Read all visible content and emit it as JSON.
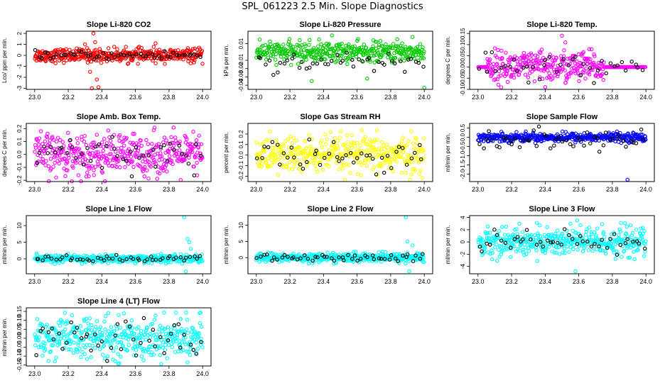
{
  "figure_title": "SPL_061223  2.5 Min. Slope Diagnostics",
  "colors": {
    "red": "#ff0000",
    "green": "#00cc00",
    "magenta": "#ff00ff",
    "yellow": "#ffff00",
    "blue": "#0000ff",
    "cyan": "#00ffff",
    "black": "#000000"
  },
  "chart_data": [
    {
      "type": "scatter",
      "title": "Slope Li-820 CO2",
      "ylabel": "Lco/ ppm per min.",
      "xlim": [
        22.95,
        24.05
      ],
      "ylim": [
        -3.1,
        2.2
      ],
      "xticks": [
        "23.0",
        "23.2",
        "23.4",
        "23.6",
        "23.8",
        "24.0"
      ],
      "xtick_values": [
        23.0,
        23.2,
        23.4,
        23.6,
        23.8,
        24.0
      ],
      "yticks": [
        "-3",
        "-2",
        "-1",
        "0",
        "1",
        "2"
      ],
      "ytick_values": [
        -3,
        -2,
        -1,
        0,
        1,
        2
      ],
      "series": [
        {
          "name": "main",
          "color": "red",
          "center": 0,
          "spread": 0.3,
          "count": 420,
          "x_range": [
            23.0,
            24.0
          ],
          "points": [
            {
              "x": 23.35,
              "y": 2.0
            },
            {
              "x": 23.36,
              "y": 1.2
            },
            {
              "x": 23.33,
              "y": -1.5
            },
            {
              "x": 23.37,
              "y": -2.2
            },
            {
              "x": 23.34,
              "y": -3.0
            },
            {
              "x": 23.38,
              "y": -2.9
            },
            {
              "x": 23.3,
              "y": 1.0
            },
            {
              "x": 23.72,
              "y": 1.1
            }
          ]
        },
        {
          "name": "black",
          "color": "black",
          "center": 0,
          "spread": 0.2,
          "count": 55,
          "x_range": [
            23.0,
            24.0
          ]
        }
      ]
    },
    {
      "type": "scatter",
      "title": "Slope Li-820 Pressure",
      "ylabel": "kPa per min.",
      "xlim": [
        22.95,
        24.05
      ],
      "ylim": [
        -0.045,
        0.025
      ],
      "xticks": [
        "23.0",
        "23.2",
        "23.4",
        "23.6",
        "23.8",
        "24.0"
      ],
      "xtick_values": [
        23.0,
        23.2,
        23.4,
        23.6,
        23.8,
        24.0
      ],
      "yticks": [
        "-0.04",
        "-0.03",
        "-0.02",
        "-0.01",
        "0.01"
      ],
      "ytick_values": [
        -0.04,
        -0.03,
        -0.02,
        -0.01,
        0.01
      ],
      "series": [
        {
          "name": "main",
          "color": "green",
          "center": 0.0,
          "spread": 0.006,
          "count": 400,
          "x_range": [
            23.0,
            24.0
          ],
          "points": [
            {
              "x": 23.45,
              "y": 0.02
            },
            {
              "x": 23.93,
              "y": 0.018
            },
            {
              "x": 23.33,
              "y": -0.035
            },
            {
              "x": 23.66,
              "y": -0.032
            },
            {
              "x": 24.0,
              "y": -0.043
            },
            {
              "x": 23.02,
              "y": 0.015
            }
          ]
        },
        {
          "name": "black",
          "color": "black",
          "center": -0.012,
          "spread": 0.006,
          "count": 45,
          "x_range": [
            23.0,
            24.0
          ]
        }
      ]
    },
    {
      "type": "scatter",
      "title": "Slope Li-820 Temp.",
      "ylabel": "degrees C per min.",
      "xlim": [
        22.95,
        24.05
      ],
      "ylim": [
        -0.1,
        0.16
      ],
      "xticks": [
        "23.0",
        "23.2",
        "23.4",
        "23.6",
        "23.8",
        "24.0"
      ],
      "xtick_values": [
        23.0,
        23.2,
        23.4,
        23.6,
        23.8,
        24.0
      ],
      "yticks": [
        "-0.10",
        "-0.05",
        "0.00",
        "0.05",
        "0.10",
        "0.15"
      ],
      "ytick_values": [
        -0.1,
        -0.05,
        0,
        0.05,
        0.1,
        0.15
      ],
      "series": [
        {
          "name": "main",
          "color": "magenta",
          "center": 0,
          "spread": 0.035,
          "count": 300,
          "x_range": [
            23.05,
            23.75
          ],
          "points": [
            {
              "x": 23.5,
              "y": 0.14
            },
            {
              "x": 23.4,
              "y": -0.09
            },
            {
              "x": 23.52,
              "y": 0.11
            }
          ]
        },
        {
          "name": "flat",
          "color": "magenta",
          "center": 0,
          "spread": 0.0,
          "count": 60,
          "x_range": [
            23.75,
            24.0
          ]
        },
        {
          "name": "flat-left",
          "color": "magenta",
          "center": 0,
          "spread": 0.0,
          "count": 12,
          "x_range": [
            23.0,
            23.06
          ]
        },
        {
          "name": "black",
          "color": "black",
          "center": 0,
          "spread": 0.03,
          "count": 40,
          "x_range": [
            23.0,
            24.0
          ]
        }
      ]
    },
    {
      "type": "scatter",
      "title": "Slope Amb. Box Temp.",
      "ylabel": "degrees C per min.",
      "xlim": [
        22.95,
        24.05
      ],
      "ylim": [
        -0.21,
        0.24
      ],
      "xticks": [
        "23.0",
        "23.2",
        "23.4",
        "23.6",
        "23.8",
        "24.0"
      ],
      "xtick_values": [
        23.0,
        23.2,
        23.4,
        23.6,
        23.8,
        24.0
      ],
      "yticks": [
        "-0.2",
        "-0.1",
        "0.0",
        "0.1",
        "0.2"
      ],
      "ytick_values": [
        -0.2,
        -0.1,
        0,
        0.1,
        0.2
      ],
      "series": [
        {
          "name": "main",
          "color": "magenta",
          "center": 0,
          "spread": 0.08,
          "count": 420,
          "x_range": [
            23.0,
            24.0
          ]
        },
        {
          "name": "black",
          "color": "black",
          "center": 0,
          "spread": 0.07,
          "count": 45,
          "x_range": [
            23.0,
            24.0
          ]
        }
      ]
    },
    {
      "type": "scatter",
      "title": "Slope Gas Stream RH",
      "ylabel": "percent per min.",
      "xlim": [
        22.95,
        24.05
      ],
      "ylim": [
        -0.25,
        0.3
      ],
      "xticks": [
        "23.0",
        "23.2",
        "23.4",
        "23.6",
        "23.8",
        "24.0"
      ],
      "xtick_values": [
        23.0,
        23.2,
        23.4,
        23.6,
        23.8,
        24.0
      ],
      "yticks": [
        "-0.2",
        "-0.1",
        "0.0",
        "0.1",
        "0.2"
      ],
      "ytick_values": [
        -0.2,
        -0.1,
        0,
        0.1,
        0.2
      ],
      "series": [
        {
          "name": "main",
          "color": "yellow",
          "center": 0,
          "spread": 0.09,
          "count": 420,
          "x_range": [
            23.0,
            24.0
          ]
        },
        {
          "name": "black",
          "color": "black",
          "center": 0,
          "spread": 0.07,
          "count": 45,
          "x_range": [
            23.0,
            24.0
          ]
        }
      ]
    },
    {
      "type": "scatter",
      "title": "Slope Sample Flow",
      "ylabel": "ml/min per min.",
      "xlim": [
        22.95,
        24.05
      ],
      "ylim": [
        -2.4,
        0.75
      ],
      "xticks": [
        "23.0",
        "23.2",
        "23.4",
        "23.6",
        "23.8",
        "24.0"
      ],
      "xtick_values": [
        23.0,
        23.2,
        23.4,
        23.6,
        23.8,
        24.0
      ],
      "yticks": [
        "-2.0",
        "-1.5",
        "-1.0",
        "-0.5",
        "0.0",
        "0.5"
      ],
      "ytick_values": [
        -2.0,
        -1.5,
        -1.0,
        -0.5,
        0.0,
        0.5
      ],
      "series": [
        {
          "name": "main",
          "color": "blue",
          "center": 0.0,
          "spread": 0.12,
          "count": 420,
          "x_range": [
            23.0,
            24.0
          ],
          "points": [
            {
              "x": 23.89,
              "y": -2.3
            }
          ]
        },
        {
          "name": "black",
          "color": "black",
          "center": -0.15,
          "spread": 0.3,
          "count": 50,
          "x_range": [
            23.0,
            24.0
          ]
        }
      ]
    },
    {
      "type": "scatter",
      "title": "Slope Line 1 Flow",
      "ylabel": "ml/min per min.",
      "xlim": [
        22.95,
        24.05
      ],
      "ylim": [
        -4.5,
        13
      ],
      "xticks": [
        "23.0",
        "23.2",
        "23.4",
        "23.6",
        "23.8",
        "24.0"
      ],
      "xtick_values": [
        23.0,
        23.2,
        23.4,
        23.6,
        23.8,
        24.0
      ],
      "yticks": [
        "0",
        "5",
        "10"
      ],
      "ytick_values": [
        0,
        5,
        10
      ],
      "series": [
        {
          "name": "main",
          "color": "cyan",
          "center": 0,
          "spread": 0.6,
          "count": 420,
          "x_range": [
            23.0,
            24.0
          ],
          "points": [
            {
              "x": 23.89,
              "y": 12.5
            },
            {
              "x": 23.91,
              "y": 6.0
            },
            {
              "x": 23.92,
              "y": 5.0
            },
            {
              "x": 23.9,
              "y": -3.8
            },
            {
              "x": 23.93,
              "y": 3.0
            }
          ]
        },
        {
          "name": "black",
          "color": "black",
          "center": 0,
          "spread": 0.5,
          "count": 50,
          "x_range": [
            23.0,
            24.0
          ]
        }
      ]
    },
    {
      "type": "scatter",
      "title": "Slope Line 2 Flow",
      "ylabel": "ml/min per min.",
      "xlim": [
        22.95,
        24.05
      ],
      "ylim": [
        -5,
        13
      ],
      "xticks": [
        "23.0",
        "23.2",
        "23.4",
        "23.6",
        "23.8",
        "24.0"
      ],
      "xtick_values": [
        23.0,
        23.2,
        23.4,
        23.6,
        23.8,
        24.0
      ],
      "yticks": [
        "0",
        "5",
        "10"
      ],
      "ytick_values": [
        0,
        5,
        10
      ],
      "series": [
        {
          "name": "main",
          "color": "cyan",
          "center": 0,
          "spread": 0.7,
          "count": 420,
          "x_range": [
            23.0,
            24.0
          ],
          "points": [
            {
              "x": 23.89,
              "y": 12.5
            },
            {
              "x": 23.9,
              "y": 5.0
            },
            {
              "x": 23.93,
              "y": 3.8
            },
            {
              "x": 23.91,
              "y": -4.2
            }
          ]
        },
        {
          "name": "black",
          "color": "black",
          "center": 0,
          "spread": 0.6,
          "count": 50,
          "x_range": [
            23.0,
            24.0
          ]
        }
      ]
    },
    {
      "type": "scatter",
      "title": "Slope Line 3 Flow",
      "ylabel": "ml/min per min.",
      "xlim": [
        22.95,
        24.05
      ],
      "ylim": [
        -5.2,
        4.3
      ],
      "xticks": [
        "23.0",
        "23.2",
        "23.4",
        "23.6",
        "23.8",
        "24.0"
      ],
      "xtick_values": [
        23.0,
        23.2,
        23.4,
        23.6,
        23.8,
        24.0
      ],
      "yticks": [
        "-4",
        "-2",
        "0",
        "2",
        "4"
      ],
      "ytick_values": [
        -4,
        -2,
        0,
        2,
        4
      ],
      "series": [
        {
          "name": "main",
          "color": "cyan",
          "center": 0,
          "spread": 1.2,
          "count": 420,
          "x_range": [
            23.0,
            24.0
          ],
          "points": [
            {
              "x": 23.59,
              "y": 3.5
            },
            {
              "x": 23.58,
              "y": -4.8
            },
            {
              "x": 23.55,
              "y": 3.0
            }
          ]
        },
        {
          "name": "black",
          "color": "black",
          "center": 0,
          "spread": 1.0,
          "count": 45,
          "x_range": [
            23.0,
            24.0
          ]
        }
      ]
    },
    {
      "type": "scatter",
      "title": "Slope Line 4 (LT) Flow",
      "ylabel": "ml/min per min.",
      "xlim": [
        22.95,
        24.05
      ],
      "ylim": [
        -0.155,
        0.17
      ],
      "xticks": [
        "23.0",
        "23.2",
        "23.4",
        "23.6",
        "23.8",
        "24.0"
      ],
      "xtick_values": [
        23.0,
        23.2,
        23.4,
        23.6,
        23.8,
        24.0
      ],
      "yticks": [
        "-0.15",
        "-0.10",
        "-0.05",
        "0.00",
        "0.05",
        "0.10",
        "0.15"
      ],
      "ytick_values": [
        -0.15,
        -0.1,
        -0.05,
        0,
        0.05,
        0.1,
        0.15
      ],
      "series": [
        {
          "name": "main",
          "color": "cyan",
          "center": 0,
          "spread": 0.055,
          "count": 420,
          "x_range": [
            23.0,
            24.0
          ]
        },
        {
          "name": "black",
          "color": "black",
          "center": 0,
          "spread": 0.05,
          "count": 45,
          "x_range": [
            23.0,
            24.0
          ]
        }
      ]
    }
  ]
}
